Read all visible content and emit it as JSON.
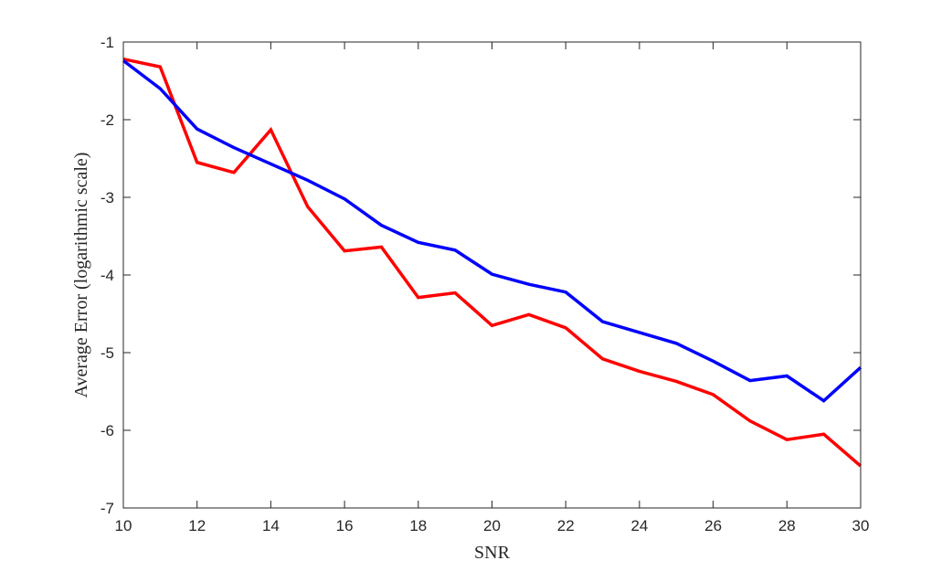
{
  "chart_data": {
    "type": "line",
    "title": "",
    "xlabel": "SNR",
    "ylabel": "Average Error  (logarithmic scale)",
    "xlim": [
      10,
      30
    ],
    "ylim": [
      -7,
      -1
    ],
    "xticks": [
      10,
      12,
      14,
      16,
      18,
      20,
      22,
      24,
      26,
      28,
      30
    ],
    "yticks": [
      -7,
      -6,
      -5,
      -4,
      -3,
      -2,
      -1
    ],
    "grid": false,
    "legend": "none",
    "x": [
      10,
      11,
      12,
      13,
      14,
      15,
      16,
      17,
      18,
      19,
      20,
      21,
      22,
      23,
      24,
      25,
      26,
      27,
      28,
      29,
      30
    ],
    "series": [
      {
        "color": "#ff0000",
        "values": [
          -1.22,
          -1.32,
          -2.55,
          -2.68,
          -2.13,
          -3.12,
          -3.69,
          -3.64,
          -4.29,
          -4.23,
          -4.65,
          -4.51,
          -4.68,
          -5.08,
          -5.24,
          -5.37,
          -5.54,
          -5.88,
          -6.12,
          -6.05,
          -6.46
        ]
      },
      {
        "color": "#0000ff",
        "values": [
          -1.24,
          -1.6,
          -2.12,
          -2.36,
          -2.57,
          -2.78,
          -3.02,
          -3.36,
          -3.58,
          -3.68,
          -3.99,
          -4.12,
          -4.22,
          -4.6,
          -4.74,
          -4.88,
          -5.11,
          -5.36,
          -5.3,
          -5.62,
          -5.19
        ]
      }
    ]
  }
}
